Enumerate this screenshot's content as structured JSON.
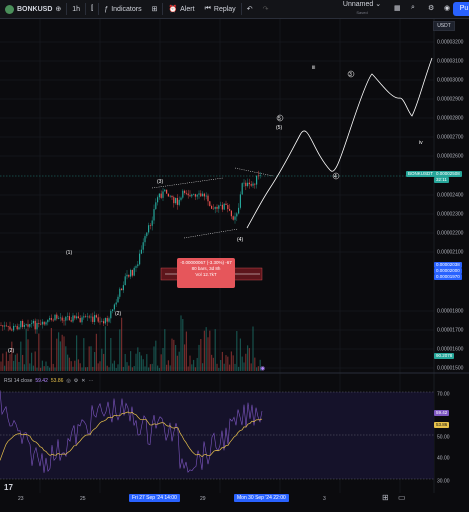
{
  "toolbar": {
    "symbol": "BONKUSD",
    "interval": "1h",
    "indicators_label": "Indicators",
    "alert_label": "Alert",
    "replay_label": "Replay",
    "layout_name": "Unnamed",
    "layout_status": "Saved",
    "publish_label": "Pu"
  },
  "currency_label": "USDT",
  "price_axis": {
    "ticks": [
      "0.00003200",
      "0.00003100",
      "0.00003000",
      "0.00002900",
      "0.00002800",
      "0.00002700",
      "0.00002600",
      "0.00002400",
      "0.00002300",
      "0.00002200",
      "0.00002100",
      "0.00001800",
      "0.00001700",
      "0.00001600",
      "0.00001500"
    ],
    "current_label": "BONKUSDT",
    "current_price": "0.00002508",
    "countdown": "32:11",
    "tag_1": "0.00002038",
    "tag_2": "0.00002000",
    "tag_3": "0.00001970",
    "vol_tag": "90.2078"
  },
  "rsi": {
    "title": "RSI 14 close",
    "value_rsi": "59.42",
    "value_ma": "53.86",
    "axis": [
      "70.00",
      "50.00",
      "40.00",
      "30.00"
    ],
    "tag_rsi": "59.42",
    "tag_ma": "53.86"
  },
  "waves": {
    "w1": "(1)",
    "w2": "(2)",
    "w3": "(3)",
    "w4": "(4)",
    "w5": "(5)",
    "w2b": "(2)",
    "c3": "3",
    "c4": "4",
    "c5": "5",
    "c5b": "(5)",
    "iii": "iii",
    "iv": "iv"
  },
  "tooltip": {
    "line1": "-0.00000067 (-3.30%) -67",
    "line2": "80 bars, 3d 8h",
    "line3": "Vol 12.7kT"
  },
  "time_axis": {
    "labels": [
      "23",
      "25",
      "29",
      "3"
    ],
    "start_highlight": "Fri 27 Sep '24   14:00",
    "end_highlight": "Mon 30 Sep '24   22:00"
  },
  "colors": {
    "up": "#26a69a",
    "down": "#ef5350",
    "rsi": "#7e57c2",
    "rsi_ma": "#e7c14b",
    "accent": "#2962ff",
    "projection": "#ffffff"
  }
}
